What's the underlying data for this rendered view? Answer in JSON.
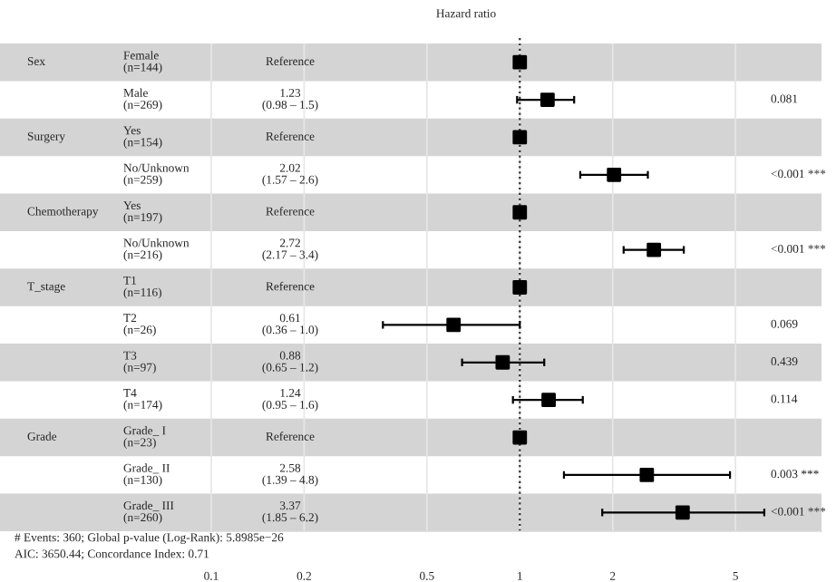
{
  "chart_data": {
    "type": "scatter",
    "orientation": "horizontal",
    "title": "Hazard ratio",
    "categories": [
      "Female\n(n=144)",
      "Male\n(n=269)",
      "Yes\n(n=154)",
      "No/Unknown\n(n=259)",
      "Yes\n(n=197)",
      "No/Unknown\n(n=216)",
      "T1\n(n=116)",
      "T2\n(n=26)",
      "T3\n(n=97)",
      "T4\n(n=174)",
      "Grade_ I\n(n=23)",
      "Grade_ II\n(n=130)",
      "Grade_ III\n(n=260)"
    ],
    "series": [
      {
        "color": "#000000",
        "values": [
          1,
          1.23,
          1,
          2.02,
          1,
          2.72,
          1,
          0.61,
          0.88,
          1.24,
          1,
          2.58,
          3.37
        ],
        "errors": [
          null,
          [
            0.98,
            1.5
          ],
          null,
          [
            1.57,
            2.6
          ],
          null,
          [
            2.17,
            3.4
          ],
          null,
          [
            0.36,
            1.0
          ],
          [
            0.65,
            1.2
          ],
          [
            0.95,
            1.6
          ],
          null,
          [
            1.39,
            4.8
          ],
          [
            1.85,
            6.2
          ]
        ]
      }
    ],
    "annotations": [
      "Sex",
      "Surgery",
      "Chemotherapy",
      "T_stage",
      "Grade",
      "Reference",
      "1.23\n(0.98 – 1.5)",
      "Reference",
      "2.02\n(1.57 – 2.6)",
      "Reference",
      "2.72\n(2.17 – 3.4)",
      "Reference",
      "0.61\n(0.36 – 1.0)",
      "0.88\n(0.65 – 1.2)",
      "1.24\n(0.95 – 1.6)",
      "Reference",
      "2.58\n(1.39 – 4.8)",
      "3.37\n(1.85 – 6.2)",
      "0.081",
      "<0.001 ***",
      "<0.001 ***",
      "0.069",
      "0.439",
      "0.114",
      "0.003 ***",
      "<0.001 ***",
      "# Events: 360; Global p-value (Log-Rank): 5.8985e−26",
      "AIC: 3650.44; Concordance Index: 0.71"
    ],
    "log": "x",
    "xlim": [
      0.08,
      9.5
    ],
    "xticks": [
      0.1,
      0.2,
      0.5,
      1,
      2,
      5
    ],
    "grid": "x",
    "ref_lines": [
      {
        "axis": "x",
        "value": 1,
        "line_style": "dotted"
      }
    ],
    "marker": "square",
    "tick_labels": "x"
  }
}
